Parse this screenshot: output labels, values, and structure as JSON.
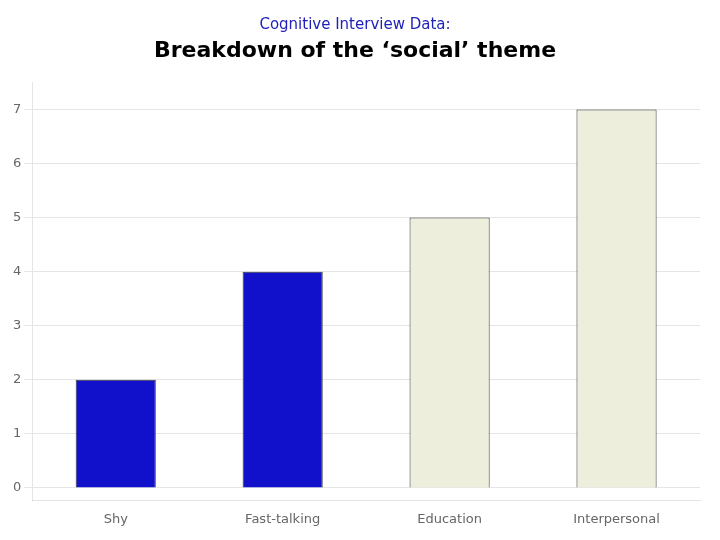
{
  "chart_data": {
    "type": "bar",
    "title": "Cognitive Interview Data:",
    "subtitle": "Breakdown of the ‘social’ theme",
    "categories": [
      "Shy",
      "Fast-talking",
      "Education",
      "Interpersonal"
    ],
    "values": [
      2,
      4,
      5,
      7
    ],
    "colors": [
      "#1111CC",
      "#1111CC",
      "#EEEEDD",
      "#EEEEDD"
    ],
    "ylim": [
      -0.23,
      7.5
    ],
    "yticks": [
      0,
      1,
      2,
      3,
      4,
      5,
      6,
      7
    ],
    "grid": true
  }
}
